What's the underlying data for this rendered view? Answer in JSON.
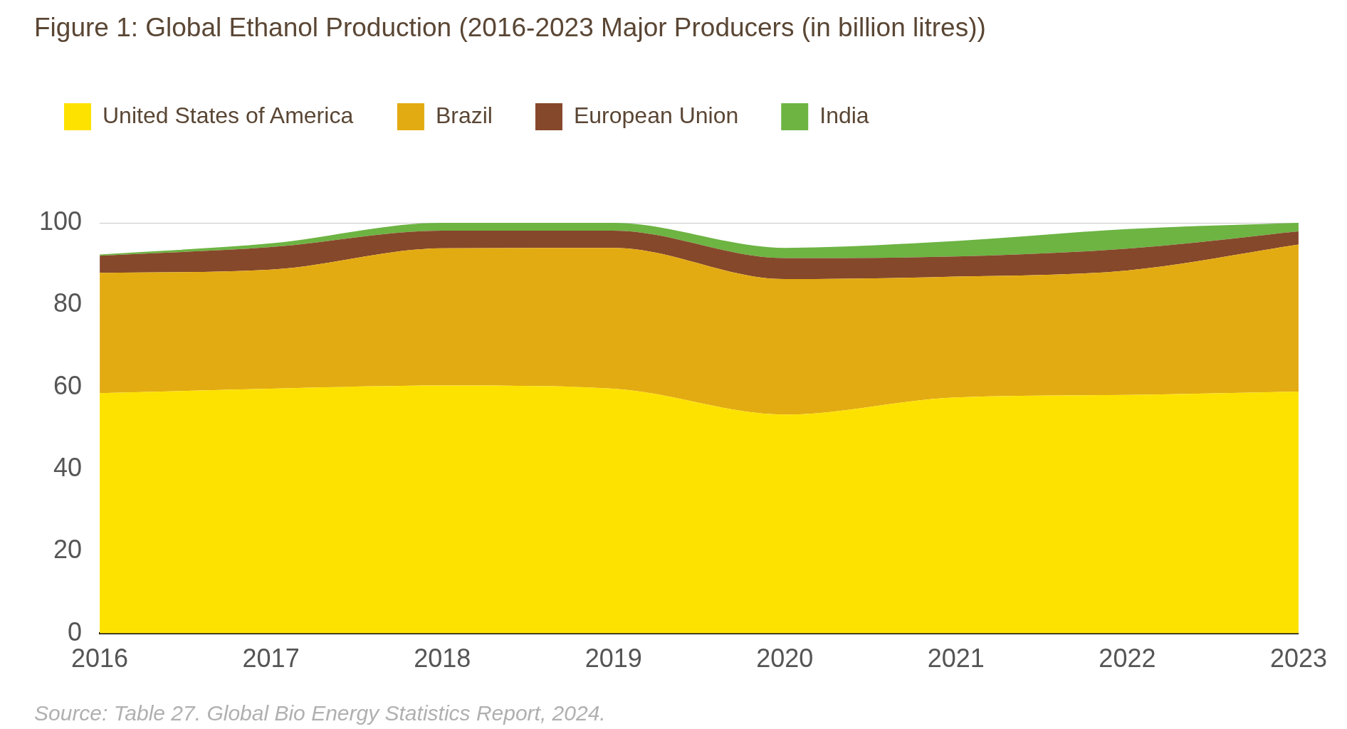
{
  "chart_data": {
    "type": "area",
    "title": "Figure 1: Global Ethanol Production (2016-2023 Major Producers (in billion litres))",
    "categories": [
      "2016",
      "2017",
      "2018",
      "2019",
      "2020",
      "2021",
      "2022",
      "2023"
    ],
    "stacked": true,
    "series": [
      {
        "name": "United States of America",
        "color": "#fde200",
        "values": [
          58.5,
          59.6,
          60.4,
          59.6,
          53.3,
          57.5,
          58.1,
          58.9
        ]
      },
      {
        "name": "Brazil",
        "color": "#e3ab12",
        "values": [
          29.3,
          29.0,
          33.4,
          34.3,
          33.0,
          29.4,
          30.3,
          35.8
        ]
      },
      {
        "name": "European Union",
        "color": "#86482a",
        "values": [
          4.2,
          5.5,
          4.3,
          4.2,
          5.1,
          4.9,
          5.3,
          3.2
        ]
      },
      {
        "name": "India",
        "color": "#6db443",
        "values": [
          0.3,
          0.9,
          1.9,
          1.9,
          2.5,
          3.8,
          4.8,
          2.1
        ]
      }
    ],
    "ylim": [
      0,
      100
    ],
    "yticks": [
      0,
      20,
      40,
      60,
      80,
      100
    ],
    "grid": "y",
    "legend": "top left",
    "annotations": [
      "Source: Table 27. Global Bio Energy Statistics Report, 2024."
    ]
  }
}
